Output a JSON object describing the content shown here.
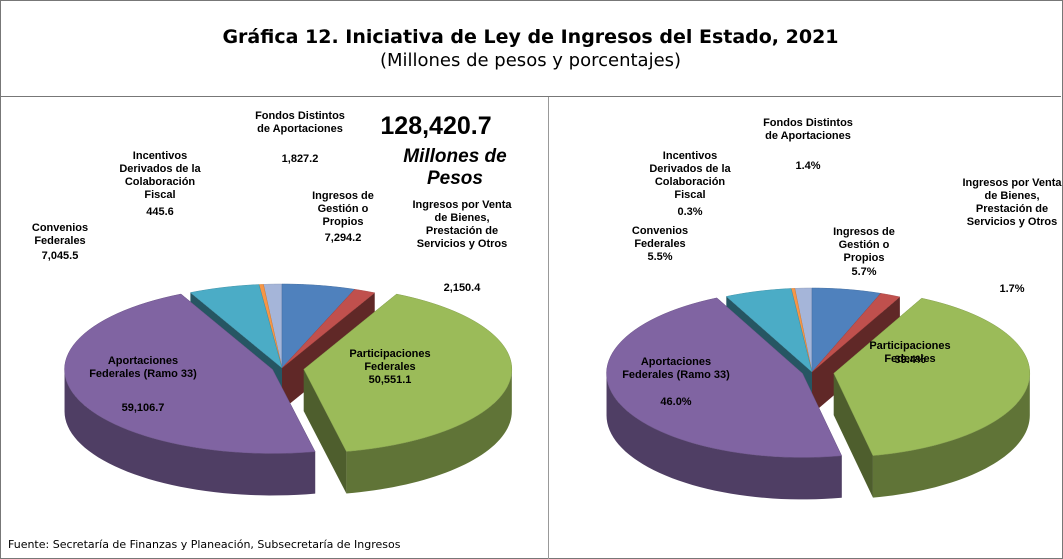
{
  "title": "Gráfica 12. Iniciativa de Ley de Ingresos del Estado, 2021",
  "subtitle": "(Millones de pesos y porcentajes)",
  "source": "Fuente: Secretaría de Finanzas y Planeación, Subsecretaría de Ingresos",
  "chart_data": [
    {
      "type": "pie",
      "annotations": [
        "128,420.7",
        "Millones de Pesos"
      ],
      "categories": [
        "Ingresos de Gestión o Propios",
        "Ingresos por Venta de Bienes, Prestación de Servicios y Otros",
        "Participaciones Federales",
        "Aportaciones Federales (Ramo 33)",
        "Convenios Federales",
        "Incentivos Derivados de la Colaboración Fiscal",
        "Fondos Distintos de Aportaciones"
      ],
      "values": [
        7294.2,
        2150.4,
        50551.1,
        59106.7,
        7045.5,
        445.6,
        1827.2
      ],
      "value_labels": [
        "7,294.2",
        "2,150.4",
        "50,551.1",
        "59,106.7",
        "7,045.5",
        "445.6",
        "1,827.2"
      ],
      "colors": [
        "#4f81bd",
        "#c0504d",
        "#9bbb59",
        "#8064a2",
        "#4bacc6",
        "#f79646",
        "#a5b5d9"
      ]
    },
    {
      "type": "pie",
      "categories": [
        "Ingresos de Gestión o Propios",
        "Ingresos por Venta de Bienes, Prestación de Servicios y Otros",
        "Participaciones Federales",
        "Aportaciones Federales (Ramo 33)",
        "Convenios Federales",
        "Incentivos Derivados de la Colaboración Fiscal",
        "Fondos Distintos de Aportaciones"
      ],
      "values": [
        5.7,
        1.7,
        39.4,
        46.0,
        5.5,
        0.3,
        1.4
      ],
      "value_labels": [
        "5.7%",
        "1.7%",
        "39.4%",
        "46.0%",
        "5.5%",
        "0.3%",
        "1.4%"
      ],
      "colors": [
        "#4f81bd",
        "#c0504d",
        "#9bbb59",
        "#8064a2",
        "#4bacc6",
        "#f79646",
        "#a5b5d9"
      ]
    }
  ]
}
